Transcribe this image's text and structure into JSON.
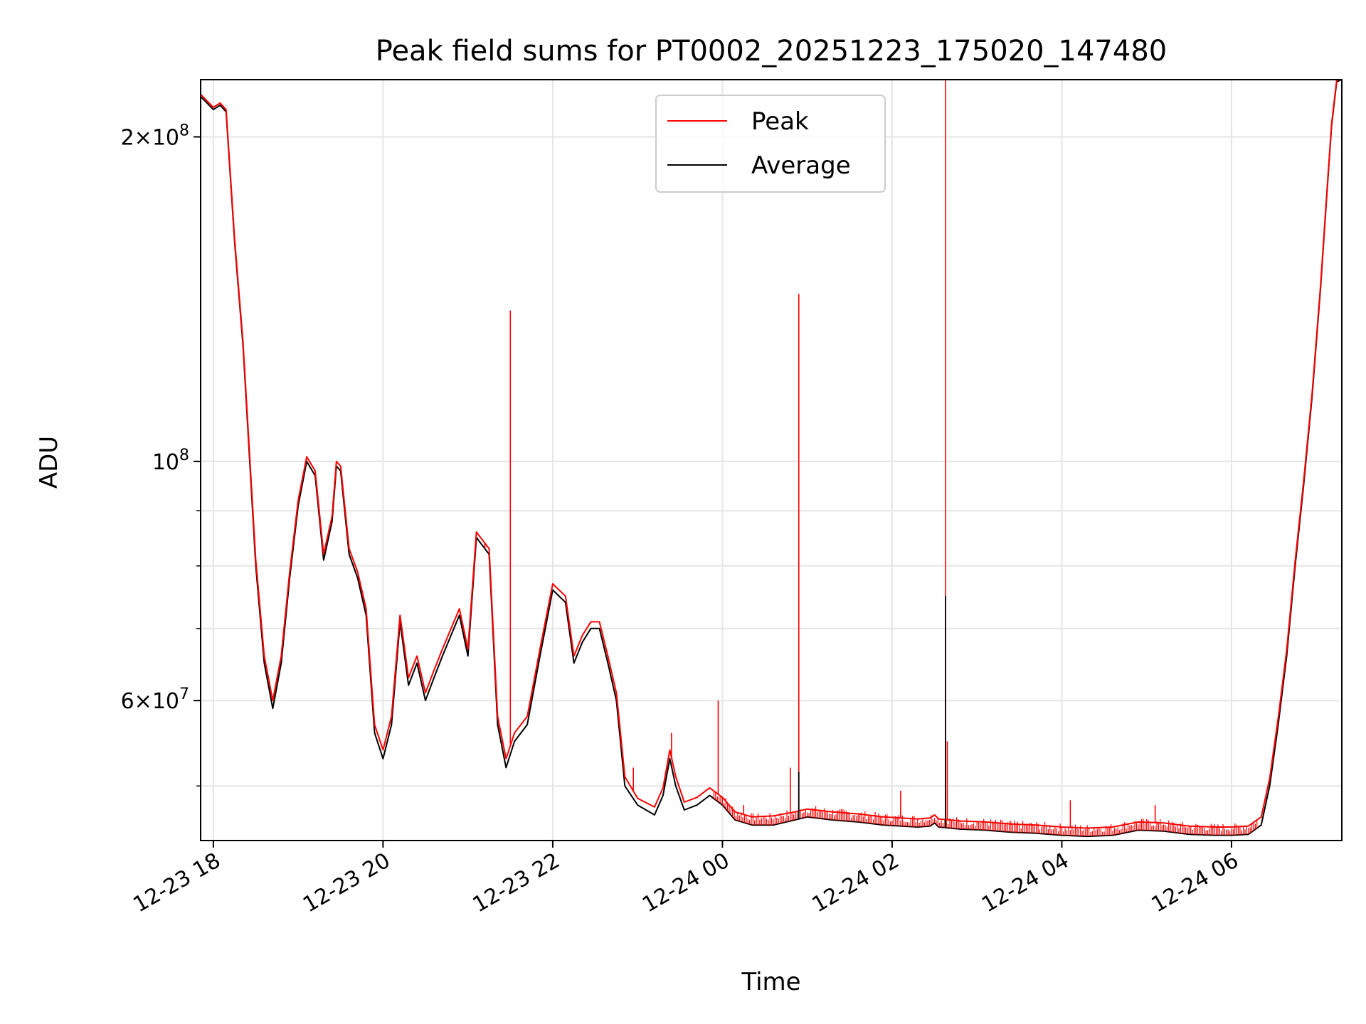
{
  "chart_data": {
    "type": "line",
    "title": "Peak field sums for PT0002_20251223_175020_147480",
    "xlabel": "Time",
    "ylabel": "ADU",
    "yscale": "log",
    "grid": true,
    "legend_position": "top-center",
    "xlim_hours": [
      -0.15,
      13.3
    ],
    "ylim": [
      44500000,
      226000000
    ],
    "x_ticks": [
      {
        "hour": 0,
        "label": "12-23 18"
      },
      {
        "hour": 2,
        "label": "12-23 20"
      },
      {
        "hour": 4,
        "label": "12-23 22"
      },
      {
        "hour": 6,
        "label": "12-24 00"
      },
      {
        "hour": 8,
        "label": "12-24 02"
      },
      {
        "hour": 10,
        "label": "12-24 04"
      },
      {
        "hour": 12,
        "label": "12-24 06"
      }
    ],
    "y_ticks_major": [
      {
        "value": 60000000,
        "base": "6",
        "exp": "7"
      },
      {
        "value": 100000000,
        "base": "",
        "exp": "8"
      },
      {
        "value": 200000000,
        "base": "2",
        "exp": "8"
      }
    ],
    "y_ticks_minor": [
      50000000,
      70000000,
      80000000,
      90000000
    ],
    "x_unit_note": "hours after 2025-12-23 18:00",
    "series": [
      {
        "name": "Average",
        "color": "#000000",
        "points": [
          [
            -0.15,
            218000000
          ],
          [
            0.0,
            212000000
          ],
          [
            0.08,
            214000000
          ],
          [
            0.15,
            211000000
          ],
          [
            0.25,
            160000000
          ],
          [
            0.35,
            128000000
          ],
          [
            0.5,
            80000000
          ],
          [
            0.6,
            65000000
          ],
          [
            0.7,
            59000000
          ],
          [
            0.8,
            65000000
          ],
          [
            0.9,
            78000000
          ],
          [
            1.0,
            91000000
          ],
          [
            1.1,
            100000000
          ],
          [
            1.2,
            97000000
          ],
          [
            1.3,
            81000000
          ],
          [
            1.4,
            88000000
          ],
          [
            1.45,
            99000000
          ],
          [
            1.5,
            98000000
          ],
          [
            1.6,
            82000000
          ],
          [
            1.7,
            78000000
          ],
          [
            1.8,
            72000000
          ],
          [
            1.9,
            56000000
          ],
          [
            2.0,
            53000000
          ],
          [
            2.1,
            57000000
          ],
          [
            2.2,
            71000000
          ],
          [
            2.3,
            62000000
          ],
          [
            2.4,
            65000000
          ],
          [
            2.5,
            60000000
          ],
          [
            2.6,
            63000000
          ],
          [
            2.7,
            66000000
          ],
          [
            2.9,
            72000000
          ],
          [
            3.0,
            66000000
          ],
          [
            3.1,
            85000000
          ],
          [
            3.25,
            82000000
          ],
          [
            3.35,
            57000000
          ],
          [
            3.45,
            52000000
          ],
          [
            3.55,
            55000000
          ],
          [
            3.7,
            57000000
          ],
          [
            3.85,
            66000000
          ],
          [
            4.0,
            76000000
          ],
          [
            4.15,
            74000000
          ],
          [
            4.25,
            65000000
          ],
          [
            4.35,
            68000000
          ],
          [
            4.45,
            70000000
          ],
          [
            4.55,
            70000000
          ],
          [
            4.65,
            65000000
          ],
          [
            4.75,
            60000000
          ],
          [
            4.85,
            50000000
          ],
          [
            5.0,
            48000000
          ],
          [
            5.2,
            47000000
          ],
          [
            5.3,
            49000000
          ],
          [
            5.38,
            53000000
          ],
          [
            5.45,
            50000000
          ],
          [
            5.55,
            47500000
          ],
          [
            5.7,
            48000000
          ],
          [
            5.85,
            49000000
          ],
          [
            6.0,
            48000000
          ],
          [
            6.15,
            46500000
          ],
          [
            6.35,
            46000000
          ],
          [
            6.6,
            46000000
          ],
          [
            6.85,
            46500000
          ],
          [
            7.0,
            46800000
          ],
          [
            7.3,
            46500000
          ],
          [
            7.6,
            46300000
          ],
          [
            7.9,
            46000000
          ],
          [
            8.1,
            45900000
          ],
          [
            8.3,
            45800000
          ],
          [
            8.45,
            45900000
          ],
          [
            8.5,
            46200000
          ],
          [
            8.55,
            45800000
          ],
          [
            8.8,
            45600000
          ],
          [
            9.1,
            45500000
          ],
          [
            9.4,
            45300000
          ],
          [
            9.7,
            45200000
          ],
          [
            10.0,
            45000000
          ],
          [
            10.3,
            44900000
          ],
          [
            10.6,
            45000000
          ],
          [
            10.9,
            45500000
          ],
          [
            11.2,
            45400000
          ],
          [
            11.5,
            45100000
          ],
          [
            11.8,
            45000000
          ],
          [
            12.0,
            45000000
          ],
          [
            12.2,
            45100000
          ],
          [
            12.35,
            46000000
          ],
          [
            12.45,
            50000000
          ],
          [
            12.55,
            57000000
          ],
          [
            12.65,
            66000000
          ],
          [
            12.75,
            80000000
          ],
          [
            12.85,
            95000000
          ],
          [
            12.95,
            115000000
          ],
          [
            13.05,
            145000000
          ],
          [
            13.12,
            175000000
          ],
          [
            13.18,
            205000000
          ],
          [
            13.24,
            225000000
          ],
          [
            13.3,
            226000000
          ]
        ]
      },
      {
        "name": "Peak",
        "color": "#ff0000",
        "points": [
          [
            -0.15,
            219000000
          ],
          [
            0.0,
            213000000
          ],
          [
            0.08,
            215000000
          ],
          [
            0.15,
            212000000
          ],
          [
            0.25,
            161000000
          ],
          [
            0.35,
            129000000
          ],
          [
            0.5,
            81000000
          ],
          [
            0.6,
            66000000
          ],
          [
            0.7,
            60000000
          ],
          [
            0.8,
            66000000
          ],
          [
            0.9,
            79000000
          ],
          [
            1.0,
            92000000
          ],
          [
            1.1,
            101000000
          ],
          [
            1.2,
            98000000
          ],
          [
            1.3,
            82000000
          ],
          [
            1.4,
            89000000
          ],
          [
            1.45,
            100000000
          ],
          [
            1.5,
            99000000
          ],
          [
            1.6,
            83000000
          ],
          [
            1.7,
            79000000
          ],
          [
            1.8,
            73000000
          ],
          [
            1.9,
            57000000
          ],
          [
            2.0,
            54000000
          ],
          [
            2.1,
            58000000
          ],
          [
            2.2,
            72000000
          ],
          [
            2.3,
            63000000
          ],
          [
            2.4,
            66000000
          ],
          [
            2.5,
            61000000
          ],
          [
            2.6,
            64000000
          ],
          [
            2.7,
            67000000
          ],
          [
            2.9,
            73000000
          ],
          [
            3.0,
            67000000
          ],
          [
            3.1,
            86000000
          ],
          [
            3.25,
            83000000
          ],
          [
            3.35,
            58000000
          ],
          [
            3.45,
            53000000
          ],
          [
            3.55,
            56000000
          ],
          [
            3.7,
            58000000
          ],
          [
            3.85,
            67000000
          ],
          [
            4.0,
            77000000
          ],
          [
            4.15,
            75000000
          ],
          [
            4.25,
            66000000
          ],
          [
            4.35,
            69000000
          ],
          [
            4.45,
            71000000
          ],
          [
            4.55,
            71000000
          ],
          [
            4.65,
            66000000
          ],
          [
            4.75,
            61000000
          ],
          [
            4.85,
            51000000
          ],
          [
            5.0,
            48700000
          ],
          [
            5.2,
            47800000
          ],
          [
            5.3,
            49800000
          ],
          [
            5.38,
            54000000
          ],
          [
            5.45,
            51000000
          ],
          [
            5.55,
            48300000
          ],
          [
            5.7,
            48800000
          ],
          [
            5.85,
            49800000
          ],
          [
            6.0,
            48800000
          ],
          [
            6.15,
            47300000
          ],
          [
            6.35,
            46800000
          ],
          [
            6.6,
            46900000
          ],
          [
            6.85,
            47300000
          ],
          [
            7.0,
            47600000
          ],
          [
            7.3,
            47300000
          ],
          [
            7.6,
            47100000
          ],
          [
            7.9,
            46800000
          ],
          [
            8.1,
            46700000
          ],
          [
            8.3,
            46600000
          ],
          [
            8.45,
            46700000
          ],
          [
            8.5,
            47000000
          ],
          [
            8.55,
            46600000
          ],
          [
            8.8,
            46400000
          ],
          [
            9.1,
            46300000
          ],
          [
            9.4,
            46100000
          ],
          [
            9.7,
            46000000
          ],
          [
            10.0,
            45800000
          ],
          [
            10.3,
            45700000
          ],
          [
            10.6,
            45800000
          ],
          [
            10.9,
            46300000
          ],
          [
            11.2,
            46200000
          ],
          [
            11.5,
            45900000
          ],
          [
            11.8,
            45800000
          ],
          [
            12.0,
            45800000
          ],
          [
            12.2,
            45900000
          ],
          [
            12.35,
            46800000
          ],
          [
            12.45,
            50800000
          ],
          [
            12.55,
            57800000
          ],
          [
            12.65,
            66800000
          ],
          [
            12.75,
            80800000
          ],
          [
            12.85,
            95800000
          ],
          [
            12.95,
            115800000
          ],
          [
            13.05,
            145800000
          ],
          [
            13.12,
            175800000
          ],
          [
            13.18,
            205800000
          ],
          [
            13.24,
            225800000
          ],
          [
            13.3,
            226000000
          ]
        ]
      }
    ],
    "peak_spikes": [
      {
        "hour": 3.2,
        "value": 83000000
      },
      {
        "hour": 3.5,
        "value": 138000000
      },
      {
        "hour": 4.95,
        "value": 52000000
      },
      {
        "hour": 5.95,
        "value": 60000000
      },
      {
        "hour": 5.4,
        "value": 56000000
      },
      {
        "hour": 6.25,
        "value": 48000000
      },
      {
        "hour": 6.8,
        "value": 52000000
      },
      {
        "hour": 6.9,
        "value": 143000000
      },
      {
        "hour": 8.1,
        "value": 49500000
      },
      {
        "hour": 8.63,
        "value": 226000000
      },
      {
        "hour": 8.65,
        "value": 55000000
      },
      {
        "hour": 10.1,
        "value": 48500000
      },
      {
        "hour": 11.1,
        "value": 48000000
      }
    ],
    "average_spikes": [
      {
        "hour": 6.9,
        "value": 51500000
      },
      {
        "hour": 8.63,
        "value": 75000000
      }
    ]
  }
}
